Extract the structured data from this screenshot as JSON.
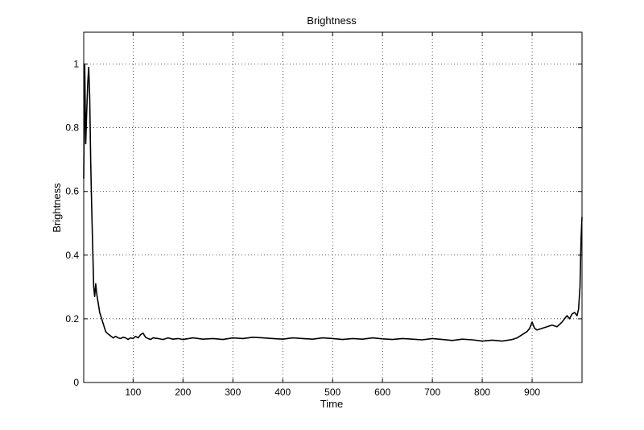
{
  "chart_data": {
    "type": "line",
    "title": "Brightness",
    "xlabel": "Time",
    "ylabel": "Brightness",
    "xlim": [
      1,
      1000
    ],
    "ylim": [
      0,
      1.1
    ],
    "grid": true,
    "xticks": [
      100,
      200,
      300,
      400,
      500,
      600,
      700,
      800,
      900
    ],
    "xtick_labels": [
      "100",
      "200",
      "300",
      "400",
      "500",
      "600",
      "700",
      "800",
      "900"
    ],
    "yticks": [
      0,
      0.2,
      0.4,
      0.6,
      0.8,
      1
    ],
    "ytick_labels": [
      "0",
      "0.2",
      "0.4",
      "0.6",
      "0.8",
      "1"
    ],
    "series": [
      {
        "color": "#000000",
        "x": [
          1,
          3,
          5,
          7,
          9,
          11,
          13,
          15,
          17,
          19,
          21,
          23,
          25,
          27,
          29,
          31,
          33,
          35,
          37,
          39,
          41,
          43,
          45,
          48,
          52,
          56,
          60,
          65,
          70,
          75,
          80,
          85,
          90,
          95,
          100,
          105,
          110,
          115,
          120,
          125,
          130,
          135,
          140,
          150,
          160,
          170,
          180,
          190,
          200,
          220,
          240,
          260,
          280,
          300,
          320,
          340,
          360,
          380,
          400,
          420,
          440,
          460,
          480,
          500,
          520,
          540,
          560,
          580,
          600,
          620,
          640,
          660,
          680,
          700,
          720,
          740,
          760,
          780,
          800,
          820,
          840,
          860,
          870,
          880,
          890,
          895,
          900,
          905,
          910,
          920,
          930,
          940,
          950,
          960,
          965,
          970,
          975,
          980,
          985,
          990,
          993,
          996,
          998,
          1000
        ],
        "y": [
          0.64,
          1.0,
          0.75,
          0.85,
          0.94,
          0.99,
          0.9,
          0.69,
          0.55,
          0.42,
          0.3,
          0.27,
          0.31,
          0.28,
          0.26,
          0.24,
          0.22,
          0.21,
          0.2,
          0.19,
          0.18,
          0.17,
          0.16,
          0.155,
          0.15,
          0.145,
          0.14,
          0.145,
          0.14,
          0.138,
          0.142,
          0.14,
          0.135,
          0.14,
          0.138,
          0.145,
          0.14,
          0.15,
          0.155,
          0.142,
          0.138,
          0.135,
          0.14,
          0.138,
          0.135,
          0.14,
          0.136,
          0.138,
          0.135,
          0.14,
          0.136,
          0.138,
          0.135,
          0.14,
          0.138,
          0.142,
          0.14,
          0.138,
          0.136,
          0.14,
          0.138,
          0.136,
          0.14,
          0.138,
          0.135,
          0.138,
          0.136,
          0.14,
          0.137,
          0.135,
          0.138,
          0.136,
          0.134,
          0.138,
          0.135,
          0.132,
          0.136,
          0.134,
          0.13,
          0.133,
          0.13,
          0.135,
          0.14,
          0.15,
          0.16,
          0.17,
          0.19,
          0.17,
          0.165,
          0.17,
          0.175,
          0.18,
          0.175,
          0.19,
          0.2,
          0.21,
          0.2,
          0.215,
          0.22,
          0.21,
          0.23,
          0.3,
          0.45,
          0.52
        ]
      }
    ]
  }
}
